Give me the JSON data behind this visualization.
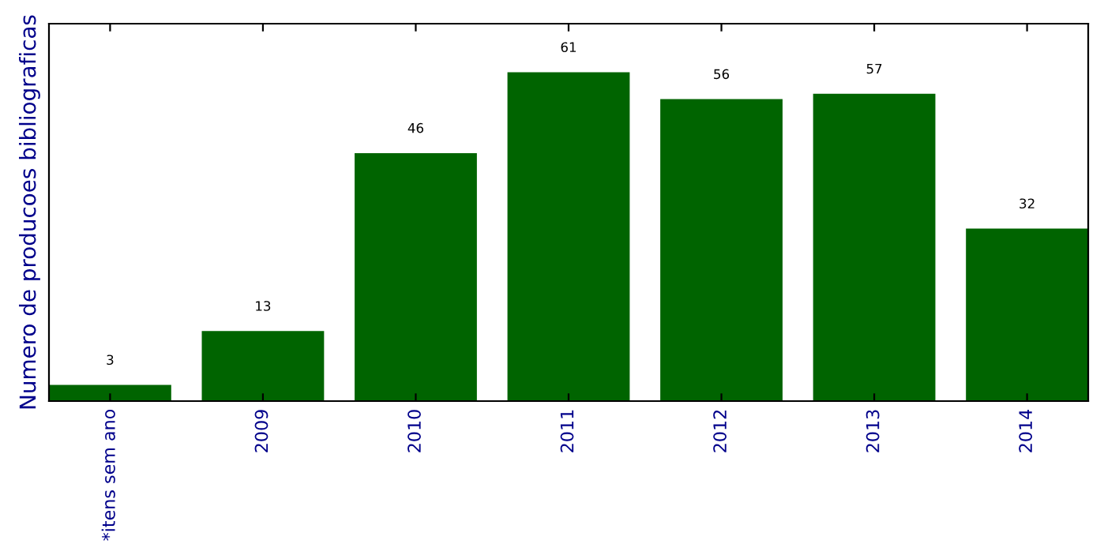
{
  "chart_data": {
    "type": "bar",
    "ylabel": "Numero de producoes bibliograficas",
    "categories": [
      "*itens sem ano",
      "2009",
      "2010",
      "2011",
      "2012",
      "2013",
      "2014"
    ],
    "values": [
      3,
      13,
      46,
      61,
      56,
      57,
      32
    ],
    "color": "#006400",
    "ylim": [
      0,
      70
    ],
    "tick_labels": "x",
    "data_labels": true,
    "grid": false,
    "legend": false
  }
}
